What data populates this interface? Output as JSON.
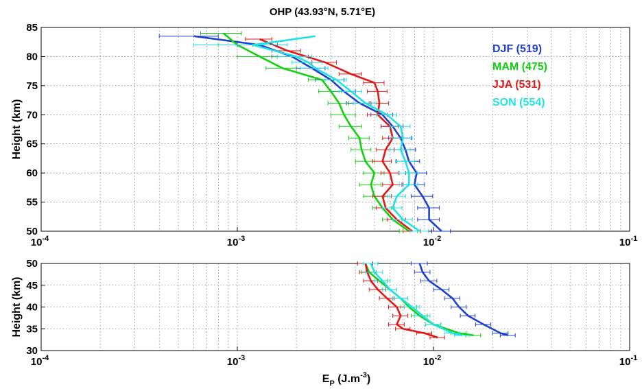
{
  "chart_data": {
    "type": "line",
    "title": "OHP (43.93°N, 5.71°E)",
    "xlabel": "E_P (J.m^-3)",
    "xscale": "log",
    "xlim": [
      0.0001,
      0.1
    ],
    "x_ticks": [
      0.0001,
      0.001,
      0.01,
      0.1
    ],
    "x_tick_labels": [
      {
        "base": "10",
        "exp": "-4"
      },
      {
        "base": "10",
        "exp": "-3"
      },
      {
        "base": "10",
        "exp": "-2"
      },
      {
        "base": "10",
        "exp": "-1"
      }
    ],
    "grid": true,
    "legend_position": "top-right",
    "legend": [
      "DJF (519)",
      "MAM (475)",
      "JJA (531)",
      "SON (554)"
    ],
    "colors": {
      "DJF": "#1f3fd0",
      "MAM": "#10d010",
      "JJA": "#e01818",
      "SON": "#20e0e8"
    },
    "panels": [
      {
        "name": "upper",
        "ylabel": "Height (km)",
        "ylim": [
          50,
          85
        ],
        "y_ticks": [
          50,
          55,
          60,
          65,
          70,
          75,
          80,
          85
        ],
        "series": [
          {
            "name": "DJF (519)",
            "key": "DJF",
            "y": [
              50,
              52,
              54,
              56,
              58,
              60,
              62,
              64,
              66,
              68,
              70,
              72,
              74,
              76,
              78,
              80,
              82,
              83.5
            ],
            "x": [
              0.011,
              0.0095,
              0.0095,
              0.0088,
              0.008,
              0.0082,
              0.0075,
              0.0072,
              0.0068,
              0.0062,
              0.0055,
              0.0042,
              0.0035,
              0.003,
              0.0024,
              0.0019,
              0.0013,
              0.0006
            ],
            "err": [
              0.0012,
              0.0012,
              0.0012,
              0.0011,
              0.001,
              0.001,
              0.001,
              0.0009,
              0.0009,
              0.0008,
              0.0007,
              0.0006,
              0.0005,
              0.0005,
              0.0004,
              0.0004,
              0.0003,
              0.0002
            ]
          },
          {
            "name": "MAM (475)",
            "key": "MAM",
            "y": [
              50,
              52,
              54,
              56,
              58,
              60,
              62,
              64,
              66,
              68,
              70,
              72,
              74,
              76,
              78,
              80,
              82,
              84
            ],
            "x": [
              0.0075,
              0.0062,
              0.0055,
              0.005,
              0.0048,
              0.005,
              0.0045,
              0.0043,
              0.0042,
              0.0038,
              0.0035,
              0.0033,
              0.003,
              0.0027,
              0.0017,
              0.0013,
              0.001,
              0.00085
            ],
            "err": [
              0.0008,
              0.0007,
              0.0006,
              0.0006,
              0.0006,
              0.0006,
              0.0005,
              0.0005,
              0.0005,
              0.0005,
              0.0005,
              0.0004,
              0.0004,
              0.0004,
              0.0003,
              0.0003,
              0.0002,
              0.0002
            ]
          },
          {
            "name": "JJA (531)",
            "key": "JJA",
            "y": [
              50,
              52,
              54,
              56,
              58,
              60,
              62,
              64,
              66,
              68,
              70,
              72,
              74,
              75.5,
              77,
              79,
              81,
              83
            ],
            "x": [
              0.0078,
              0.0065,
              0.0057,
              0.0055,
              0.0062,
              0.006,
              0.0055,
              0.0057,
              0.0062,
              0.006,
              0.0052,
              0.0053,
              0.0052,
              0.005,
              0.0038,
              0.0028,
              0.0018,
              0.0013
            ],
            "err": [
              0.0008,
              0.0007,
              0.0006,
              0.0006,
              0.0007,
              0.0006,
              0.0006,
              0.0006,
              0.0007,
              0.0006,
              0.0006,
              0.0006,
              0.0006,
              0.0006,
              0.0005,
              0.0004,
              0.0003,
              0.0002
            ]
          },
          {
            "name": "SON (554)",
            "key": "SON",
            "y": [
              50,
              52,
              54,
              56,
              58,
              60,
              62,
              64,
              66,
              68,
              70,
              72,
              74,
              76,
              78,
              79,
              80,
              82,
              83.5
            ],
            "x": [
              0.0085,
              0.007,
              0.0062,
              0.0065,
              0.0075,
              0.0075,
              0.0072,
              0.0068,
              0.007,
              0.0068,
              0.0058,
              0.0045,
              0.0038,
              0.0032,
              0.0025,
              0.0023,
              0.002,
              0.0012,
              0.0025
            ],
            "err": [
              0.0009,
              0.0008,
              0.0007,
              0.0007,
              0.0008,
              0.0008,
              0.0008,
              0.0008,
              0.0008,
              0.0008,
              0.0007,
              0.0006,
              0.0005,
              0.0004,
              0.0004,
              0.0004,
              0.0004,
              0.0006,
              0.0
            ]
          }
        ]
      },
      {
        "name": "lower",
        "ylabel": "Height (km)",
        "ylim": [
          30,
          50
        ],
        "y_ticks": [
          30,
          35,
          40,
          45,
          50
        ],
        "series": [
          {
            "name": "DJF (519)",
            "key": "DJF",
            "y": [
              50,
              48,
              46,
              44,
              42,
              40,
              38,
              36,
              34,
              33.5
            ],
            "x": [
              0.0085,
              0.0088,
              0.0095,
              0.011,
              0.0125,
              0.0135,
              0.015,
              0.018,
              0.022,
              0.024
            ],
            "err": [
              0.0008,
              0.0008,
              0.0009,
              0.001,
              0.0011,
              0.0012,
              0.0013,
              0.0016,
              0.002,
              0.0021
            ]
          },
          {
            "name": "MAM (475)",
            "key": "MAM",
            "y": [
              50,
              48,
              46,
              44,
              42,
              40,
              38,
              36,
              34,
              33.5
            ],
            "x": [
              0.0045,
              0.0047,
              0.0053,
              0.006,
              0.0068,
              0.0075,
              0.0085,
              0.01,
              0.0135,
              0.016
            ],
            "err": [
              0.0004,
              0.0004,
              0.0005,
              0.0005,
              0.0006,
              0.0007,
              0.0008,
              0.0009,
              0.0012,
              0.0014
            ]
          },
          {
            "name": "JJA (531)",
            "key": "JJA",
            "y": [
              50,
              48,
              46,
              44,
              42,
              40,
              38,
              36,
              35,
              34,
              33
            ],
            "x": [
              0.0045,
              0.0046,
              0.0048,
              0.0052,
              0.0058,
              0.0065,
              0.0068,
              0.0065,
              0.007,
              0.009,
              0.0105
            ],
            "err": [
              0.0004,
              0.0004,
              0.0004,
              0.0005,
              0.0005,
              0.0006,
              0.0006,
              0.0006,
              0.0006,
              0.0008,
              0.0009
            ]
          },
          {
            "name": "SON (554)",
            "key": "SON",
            "y": [
              50,
              48,
              46,
              44,
              42,
              40,
              38,
              36,
              34,
              33.5
            ],
            "x": [
              0.0048,
              0.005,
              0.0055,
              0.006,
              0.0068,
              0.0078,
              0.0088,
              0.01,
              0.0125,
              0.014
            ],
            "err": [
              0.0004,
              0.0005,
              0.0005,
              0.0005,
              0.0006,
              0.0007,
              0.0008,
              0.0009,
              0.0011,
              0.0012
            ]
          }
        ]
      }
    ]
  }
}
